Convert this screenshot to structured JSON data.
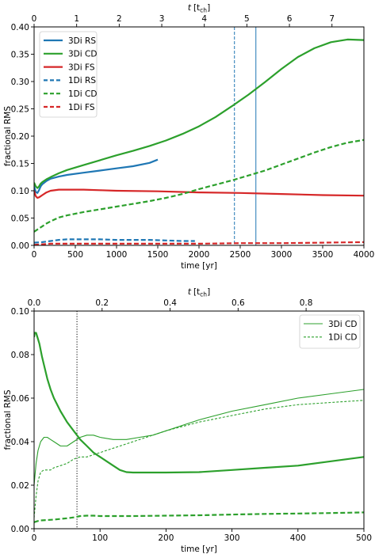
{
  "chart_data": [
    {
      "type": "line",
      "xlabel": "time [yr]",
      "ylabel": "fractional RMS",
      "top_xlabel_main": "t",
      "top_xlabel_unit": "[t",
      "top_xlabel_sub": "ch",
      "top_xlabel_close": "]",
      "xlim": [
        0,
        4000
      ],
      "ylim": [
        0,
        0.4
      ],
      "top_xlim": [
        0,
        7.75
      ],
      "xticks": [
        0,
        500,
        1000,
        1500,
        2000,
        2500,
        3000,
        3500,
        4000
      ],
      "xtick_labels": [
        "0",
        "500",
        "1000",
        "1500",
        "2000",
        "2500",
        "3000",
        "3500",
        "4000"
      ],
      "yticks": [
        0,
        0.05,
        0.1,
        0.15,
        0.2,
        0.25,
        0.3,
        0.35,
        0.4
      ],
      "ytick_labels": [
        "0.00",
        "0.05",
        "0.10",
        "0.15",
        "0.20",
        "0.25",
        "0.30",
        "0.35",
        "0.40"
      ],
      "top_xticks": [
        0,
        1,
        2,
        3,
        4,
        5,
        6,
        7
      ],
      "top_xtick_labels": [
        "0",
        "1",
        "2",
        "3",
        "4",
        "5",
        "6",
        "7"
      ],
      "legend_position": "top-left",
      "grid": false,
      "vlines": [
        {
          "x": 2430,
          "style": "dashed",
          "color": "#1f77b4"
        },
        {
          "x": 2690,
          "style": "solid",
          "color": "#1f77b4"
        }
      ],
      "series": [
        {
          "name": "3Di RS",
          "color": "#1f77b4",
          "dash": "solid",
          "width": 2.2,
          "x": [
            0,
            20,
            40,
            60,
            80,
            100,
            150,
            200,
            300,
            400,
            600,
            800,
            1000,
            1200,
            1400,
            1500
          ],
          "y": [
            0.108,
            0.098,
            0.096,
            0.101,
            0.108,
            0.112,
            0.118,
            0.122,
            0.126,
            0.129,
            0.133,
            0.137,
            0.141,
            0.145,
            0.151,
            0.157
          ]
        },
        {
          "name": "3Di CD",
          "color": "#2ca02c",
          "dash": "solid",
          "width": 2.2,
          "x": [
            0,
            20,
            40,
            60,
            80,
            100,
            150,
            200,
            300,
            400,
            600,
            800,
            1000,
            1200,
            1400,
            1600,
            1800,
            2000,
            2200,
            2400,
            2600,
            2800,
            3000,
            3200,
            3400,
            3600,
            3800,
            4000
          ],
          "y": [
            0.115,
            0.108,
            0.105,
            0.108,
            0.113,
            0.116,
            0.121,
            0.125,
            0.132,
            0.138,
            0.147,
            0.156,
            0.165,
            0.173,
            0.182,
            0.192,
            0.204,
            0.218,
            0.235,
            0.255,
            0.276,
            0.299,
            0.323,
            0.345,
            0.361,
            0.372,
            0.377,
            0.376
          ]
        },
        {
          "name": "3Di FS",
          "color": "#d62728",
          "dash": "solid",
          "width": 2.2,
          "x": [
            0,
            20,
            40,
            60,
            80,
            100,
            150,
            200,
            300,
            400,
            600,
            800,
            1000,
            1500,
            2000,
            2500,
            3000,
            3500,
            4000
          ],
          "y": [
            0.1,
            0.09,
            0.087,
            0.088,
            0.09,
            0.092,
            0.097,
            0.1,
            0.102,
            0.102,
            0.102,
            0.101,
            0.1,
            0.099,
            0.097,
            0.096,
            0.094,
            0.092,
            0.091
          ]
        },
        {
          "name": "1Di RS",
          "color": "#1f77b4",
          "dash": "dashed",
          "width": 2.2,
          "x": [
            0,
            100,
            200,
            300,
            400,
            600,
            800,
            1000,
            1200,
            1400,
            1600,
            1800,
            1950
          ],
          "y": [
            0.005,
            0.006,
            0.008,
            0.01,
            0.011,
            0.011,
            0.011,
            0.01,
            0.01,
            0.01,
            0.009,
            0.008,
            0.008
          ]
        },
        {
          "name": "1Di CD",
          "color": "#2ca02c",
          "dash": "dashed",
          "width": 2.2,
          "x": [
            0,
            50,
            100,
            150,
            200,
            300,
            400,
            600,
            800,
            1000,
            1200,
            1400,
            1600,
            1800,
            2000,
            2200,
            2400,
            2600,
            2800,
            3000,
            3200,
            3400,
            3600,
            3800,
            4000
          ],
          "y": [
            0.025,
            0.03,
            0.035,
            0.04,
            0.044,
            0.051,
            0.055,
            0.061,
            0.066,
            0.071,
            0.076,
            0.081,
            0.087,
            0.094,
            0.103,
            0.111,
            0.119,
            0.128,
            0.137,
            0.148,
            0.159,
            0.17,
            0.18,
            0.188,
            0.193
          ]
        },
        {
          "name": "1Di FS",
          "color": "#d62728",
          "dash": "dashed",
          "width": 2.2,
          "x": [
            0,
            100,
            200,
            400,
            800,
            1200,
            1600,
            2000,
            2500,
            3000,
            3500,
            4000
          ],
          "y": [
            0.001,
            0.002,
            0.003,
            0.003,
            0.003,
            0.003,
            0.003,
            0.003,
            0.004,
            0.004,
            0.005,
            0.006
          ]
        }
      ]
    },
    {
      "type": "line",
      "xlabel": "time [yr]",
      "ylabel": "fractional RMS",
      "top_xlabel_main": "t",
      "top_xlabel_unit": "[t",
      "top_xlabel_sub": "ch",
      "top_xlabel_close": "]",
      "xlim": [
        0,
        500
      ],
      "ylim": [
        0,
        0.1
      ],
      "top_xlim": [
        0,
        0.97
      ],
      "xticks": [
        0,
        100,
        200,
        300,
        400,
        500
      ],
      "xtick_labels": [
        "0",
        "100",
        "200",
        "300",
        "400",
        "500"
      ],
      "yticks": [
        0,
        0.02,
        0.04,
        0.06,
        0.08,
        0.1
      ],
      "ytick_labels": [
        "0.00",
        "0.02",
        "0.04",
        "0.06",
        "0.08",
        "0.10"
      ],
      "top_xticks": [
        0,
        0.2,
        0.4,
        0.6,
        0.8
      ],
      "top_xtick_labels": [
        "0.0",
        "0.2",
        "0.4",
        "0.6",
        "0.8"
      ],
      "legend_position": "top-right",
      "grid": false,
      "vlines": [
        {
          "x": 65,
          "style": "dotted",
          "color": "#000000"
        }
      ],
      "series": [
        {
          "name": "3Di CD",
          "color": "#2ca02c",
          "dash": "solid",
          "width": 1.1,
          "x": [
            0,
            3,
            6,
            10,
            15,
            20,
            25,
            30,
            40,
            50,
            60,
            70,
            80,
            90,
            100,
            120,
            140,
            160,
            180,
            200,
            250,
            300,
            350,
            400,
            450,
            500
          ],
          "y": [
            0.02,
            0.03,
            0.036,
            0.04,
            0.042,
            0.042,
            0.041,
            0.04,
            0.038,
            0.038,
            0.04,
            0.042,
            0.043,
            0.043,
            0.042,
            0.041,
            0.041,
            0.042,
            0.043,
            0.045,
            0.05,
            0.054,
            0.057,
            0.06,
            0.062,
            0.064
          ]
        },
        {
          "name": "1Di CD",
          "color": "#2ca02c",
          "dash": "dashed",
          "width": 1.1,
          "x": [
            0,
            3,
            6,
            10,
            15,
            20,
            25,
            30,
            40,
            50,
            60,
            70,
            80,
            90,
            100,
            120,
            140,
            160,
            180,
            200,
            250,
            300,
            350,
            400,
            450,
            500
          ],
          "y": [
            0.005,
            0.015,
            0.022,
            0.026,
            0.027,
            0.027,
            0.027,
            0.028,
            0.029,
            0.03,
            0.032,
            0.033,
            0.033,
            0.034,
            0.035,
            0.037,
            0.039,
            0.041,
            0.043,
            0.045,
            0.049,
            0.052,
            0.055,
            0.057,
            0.058,
            0.059
          ]
        },
        {
          "color": "#2ca02c",
          "dash": "solid",
          "width": 2.2,
          "x": [
            0,
            1,
            3,
            5,
            8,
            12,
            16,
            20,
            25,
            30,
            40,
            50,
            60,
            70,
            80,
            90,
            100,
            110,
            120,
            130,
            140,
            150,
            175,
            200,
            250,
            300,
            350,
            400,
            450,
            500
          ],
          "y": [
            0.088,
            0.09,
            0.09,
            0.088,
            0.085,
            0.079,
            0.074,
            0.069,
            0.064,
            0.06,
            0.054,
            0.049,
            0.045,
            0.041,
            0.038,
            0.035,
            0.033,
            0.031,
            0.029,
            0.027,
            0.026,
            0.0258,
            0.0258,
            0.0258,
            0.026,
            0.027,
            0.028,
            0.029,
            0.031,
            0.033
          ]
        },
        {
          "color": "#2ca02c",
          "dash": "dashed",
          "width": 2.2,
          "x": [
            0,
            5,
            10,
            20,
            30,
            40,
            50,
            60,
            70,
            80,
            90,
            100,
            150,
            200,
            250,
            300,
            350,
            400,
            450,
            500
          ],
          "y": [
            0.003,
            0.0035,
            0.0038,
            0.004,
            0.0042,
            0.0045,
            0.0048,
            0.0052,
            0.0058,
            0.006,
            0.006,
            0.0058,
            0.0058,
            0.006,
            0.0062,
            0.0065,
            0.0068,
            0.007,
            0.0072,
            0.0075
          ]
        }
      ]
    }
  ]
}
